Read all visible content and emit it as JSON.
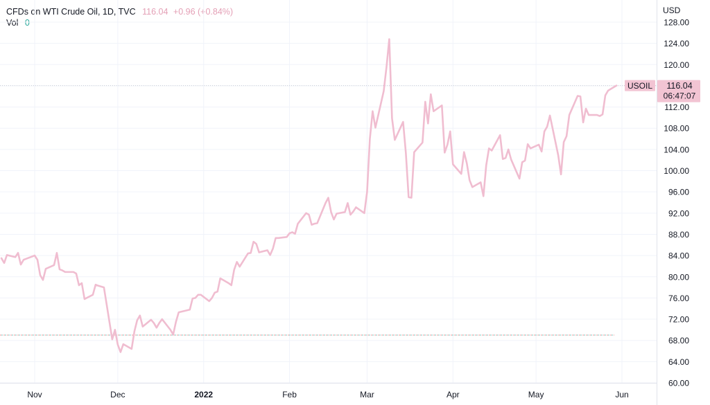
{
  "header": {
    "symbol": "CFDs on WTI Crude Oil, 1D, TVC",
    "last_price": "116.04",
    "change": "+0.96 (+0.84%)",
    "vol_label": "Vol",
    "vol_value": "0"
  },
  "price_tag": {
    "ticker": "USOIL",
    "price": "116.04",
    "countdown": "06:47:07",
    "color": "#f2c4d3"
  },
  "colors": {
    "line": "#f0bdd0",
    "grid": "#f0f3fa",
    "volume_ref": "#26a69a"
  },
  "chart_data": {
    "type": "line",
    "currency": "USD",
    "ylim": [
      60,
      129
    ],
    "y_ticks": [
      60,
      64,
      68,
      72,
      76,
      80,
      84,
      88,
      92,
      96,
      100,
      104,
      108,
      112,
      116,
      120,
      124,
      128
    ],
    "y_tick_labels": [
      "60.00",
      "64.00",
      "68.00",
      "72.00",
      "76.00",
      "80.00",
      "84.00",
      "88.00",
      "92.00",
      "96.00",
      "100.00",
      "104.00",
      "108.00",
      "112.00",
      "116.00",
      "120.00",
      "124.00",
      "128.00"
    ],
    "x_range": [
      "2021-10-20",
      "2022-06-04"
    ],
    "x_ticks": [
      {
        "date": "2021-11-01",
        "label": "Nov",
        "bold": false
      },
      {
        "date": "2021-12-01",
        "label": "Dec",
        "bold": false
      },
      {
        "date": "2022-01-01",
        "label": "2022",
        "bold": true
      },
      {
        "date": "2022-02-01",
        "label": "Feb",
        "bold": false
      },
      {
        "date": "2022-03-01",
        "label": "Mar",
        "bold": false
      },
      {
        "date": "2022-04-01",
        "label": "Apr",
        "bold": false
      },
      {
        "date": "2022-05-01",
        "label": "May",
        "bold": false
      },
      {
        "date": "2022-06-01",
        "label": "Jun",
        "bold": false
      }
    ],
    "reference_line": 69.0,
    "last_line": 116.04,
    "grid": true,
    "series": [
      {
        "points": [
          [
            "2021-10-20",
            83.5
          ],
          [
            "2021-10-21",
            82.6
          ],
          [
            "2021-10-22",
            84.1
          ],
          [
            "2021-10-25",
            83.7
          ],
          [
            "2021-10-26",
            84.5
          ],
          [
            "2021-10-27",
            82.3
          ],
          [
            "2021-10-28",
            83.2
          ],
          [
            "2021-10-29",
            83.4
          ],
          [
            "2021-11-01",
            84.0
          ],
          [
            "2021-11-02",
            83.2
          ],
          [
            "2021-11-03",
            80.3
          ],
          [
            "2021-11-04",
            79.4
          ],
          [
            "2021-11-05",
            81.5
          ],
          [
            "2021-11-08",
            82.2
          ],
          [
            "2021-11-09",
            84.5
          ],
          [
            "2021-11-10",
            81.4
          ],
          [
            "2021-11-11",
            81.2
          ],
          [
            "2021-11-12",
            80.9
          ],
          [
            "2021-11-15",
            80.9
          ],
          [
            "2021-11-16",
            80.6
          ],
          [
            "2021-11-17",
            78.4
          ],
          [
            "2021-11-18",
            78.8
          ],
          [
            "2021-11-19",
            75.8
          ],
          [
            "2021-11-22",
            76.6
          ],
          [
            "2021-11-23",
            78.5
          ],
          [
            "2021-11-24",
            78.3
          ],
          [
            "2021-11-26",
            78.0
          ],
          [
            "2021-11-29",
            68.2
          ],
          [
            "2021-11-30",
            70.0
          ],
          [
            "2021-12-01",
            67.2
          ],
          [
            "2021-12-02",
            65.8
          ],
          [
            "2021-12-03",
            67.3
          ],
          [
            "2021-12-06",
            66.4
          ],
          [
            "2021-12-07",
            69.7
          ],
          [
            "2021-12-08",
            71.8
          ],
          [
            "2021-12-09",
            72.7
          ],
          [
            "2021-12-10",
            70.6
          ],
          [
            "2021-12-13",
            71.9
          ],
          [
            "2021-12-14",
            71.3
          ],
          [
            "2021-12-15",
            70.4
          ],
          [
            "2021-12-16",
            71.3
          ],
          [
            "2021-12-17",
            72.0
          ],
          [
            "2021-12-20",
            70.0
          ],
          [
            "2021-12-21",
            69.1
          ],
          [
            "2021-12-22",
            71.5
          ],
          [
            "2021-12-23",
            73.3
          ],
          [
            "2021-12-27",
            73.8
          ],
          [
            "2021-12-28",
            75.9
          ],
          [
            "2021-12-29",
            76.0
          ],
          [
            "2021-12-30",
            76.6
          ],
          [
            "2021-12-31",
            76.6
          ],
          [
            "2022-01-03",
            75.4
          ],
          [
            "2022-01-04",
            76.0
          ],
          [
            "2022-01-05",
            77.0
          ],
          [
            "2022-01-06",
            77.2
          ],
          [
            "2022-01-07",
            79.7
          ],
          [
            "2022-01-10",
            78.8
          ],
          [
            "2022-01-11",
            78.4
          ],
          [
            "2022-01-12",
            81.3
          ],
          [
            "2022-01-13",
            82.8
          ],
          [
            "2022-01-14",
            81.9
          ],
          [
            "2022-01-17",
            84.4
          ],
          [
            "2022-01-18",
            84.5
          ],
          [
            "2022-01-19",
            86.6
          ],
          [
            "2022-01-20",
            86.2
          ],
          [
            "2022-01-21",
            84.6
          ],
          [
            "2022-01-24",
            85.0
          ],
          [
            "2022-01-25",
            84.1
          ],
          [
            "2022-01-26",
            85.3
          ],
          [
            "2022-01-27",
            87.3
          ],
          [
            "2022-01-28",
            87.3
          ],
          [
            "2022-01-31",
            87.5
          ],
          [
            "2022-02-01",
            88.2
          ],
          [
            "2022-02-02",
            88.4
          ],
          [
            "2022-02-03",
            88.1
          ],
          [
            "2022-02-04",
            90.0
          ],
          [
            "2022-02-07",
            92.0
          ],
          [
            "2022-02-08",
            91.7
          ],
          [
            "2022-02-09",
            89.8
          ],
          [
            "2022-02-10",
            90.0
          ],
          [
            "2022-02-11",
            90.1
          ],
          [
            "2022-02-14",
            93.9
          ],
          [
            "2022-02-15",
            94.9
          ],
          [
            "2022-02-16",
            92.2
          ],
          [
            "2022-02-17",
            90.8
          ],
          [
            "2022-02-18",
            91.9
          ],
          [
            "2022-02-21",
            92.2
          ],
          [
            "2022-02-22",
            93.9
          ],
          [
            "2022-02-23",
            91.7
          ],
          [
            "2022-02-24",
            92.3
          ],
          [
            "2022-02-25",
            93.1
          ],
          [
            "2022-02-28",
            92.0
          ],
          [
            "2022-03-01",
            96.0
          ],
          [
            "2022-03-02",
            106.0
          ],
          [
            "2022-03-03",
            111.2
          ],
          [
            "2022-03-04",
            108.1
          ],
          [
            "2022-03-07",
            115.0
          ],
          [
            "2022-03-08",
            119.5
          ],
          [
            "2022-03-09",
            124.8
          ],
          [
            "2022-03-10",
            109.9
          ],
          [
            "2022-03-11",
            105.8
          ],
          [
            "2022-03-14",
            109.2
          ],
          [
            "2022-03-15",
            103.3
          ],
          [
            "2022-03-16",
            95.0
          ],
          [
            "2022-03-17",
            94.9
          ],
          [
            "2022-03-18",
            103.5
          ],
          [
            "2022-03-21",
            105.3
          ],
          [
            "2022-03-22",
            113.0
          ],
          [
            "2022-03-23",
            108.9
          ],
          [
            "2022-03-24",
            114.4
          ],
          [
            "2022-03-25",
            111.2
          ],
          [
            "2022-03-28",
            112.3
          ],
          [
            "2022-03-29",
            103.4
          ],
          [
            "2022-03-30",
            104.9
          ],
          [
            "2022-03-31",
            107.4
          ],
          [
            "2022-04-01",
            101.2
          ],
          [
            "2022-04-04",
            99.4
          ],
          [
            "2022-04-05",
            103.5
          ],
          [
            "2022-04-06",
            101.4
          ],
          [
            "2022-04-07",
            98.2
          ],
          [
            "2022-04-08",
            96.9
          ],
          [
            "2022-04-11",
            97.8
          ],
          [
            "2022-04-12",
            95.2
          ],
          [
            "2022-04-13",
            101.0
          ],
          [
            "2022-04-14",
            104.2
          ],
          [
            "2022-04-15",
            103.8
          ],
          [
            "2022-04-18",
            106.7
          ],
          [
            "2022-04-19",
            102.2
          ],
          [
            "2022-04-20",
            102.4
          ],
          [
            "2022-04-21",
            104.0
          ],
          [
            "2022-04-22",
            102.1
          ],
          [
            "2022-04-25",
            98.5
          ],
          [
            "2022-04-26",
            101.6
          ],
          [
            "2022-04-27",
            101.9
          ],
          [
            "2022-04-28",
            105.0
          ],
          [
            "2022-04-29",
            104.2
          ],
          [
            "2022-05-02",
            104.9
          ],
          [
            "2022-05-03",
            103.6
          ],
          [
            "2022-05-04",
            107.4
          ],
          [
            "2022-05-05",
            108.3
          ],
          [
            "2022-05-06",
            110.4
          ],
          [
            "2022-05-09",
            102.9
          ],
          [
            "2022-05-10",
            99.3
          ],
          [
            "2022-05-11",
            105.4
          ],
          [
            "2022-05-12",
            106.5
          ],
          [
            "2022-05-13",
            110.5
          ],
          [
            "2022-05-16",
            114.1
          ],
          [
            "2022-05-17",
            114.0
          ],
          [
            "2022-05-18",
            109.1
          ],
          [
            "2022-05-19",
            111.7
          ],
          [
            "2022-05-20",
            110.5
          ],
          [
            "2022-05-23",
            110.5
          ],
          [
            "2022-05-24",
            110.3
          ],
          [
            "2022-05-25",
            110.6
          ],
          [
            "2022-05-26",
            114.2
          ],
          [
            "2022-05-27",
            115.1
          ],
          [
            "2022-05-30",
            116.04
          ]
        ]
      }
    ]
  }
}
